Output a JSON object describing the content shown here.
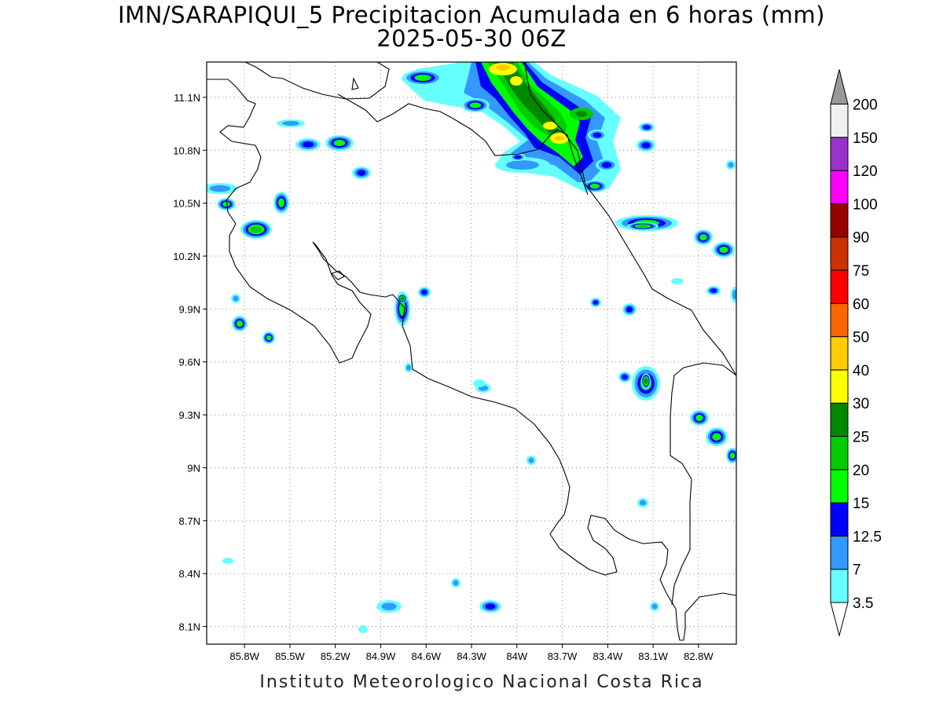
{
  "title": {
    "line1": "IMN/SARAPIQUI_5 Precipitacion Acumulada en 6 horas (mm)",
    "line2": "2025-05-30 06Z"
  },
  "footer": "Instituto Meteorologico Nacional Costa Rica",
  "map": {
    "lon_range": [
      -86.05,
      -82.55
    ],
    "lat_range": [
      8.0,
      11.3
    ],
    "lon_ticks": [
      {
        "value": -85.8,
        "label": "85.8W"
      },
      {
        "value": -85.5,
        "label": "85.5W"
      },
      {
        "value": -85.2,
        "label": "85.2W"
      },
      {
        "value": -84.9,
        "label": "84.9W"
      },
      {
        "value": -84.6,
        "label": "84.6W"
      },
      {
        "value": -84.3,
        "label": "84.3W"
      },
      {
        "value": -84.0,
        "label": "84W"
      },
      {
        "value": -83.7,
        "label": "83.7W"
      },
      {
        "value": -83.4,
        "label": "83.4W"
      },
      {
        "value": -83.1,
        "label": "83.1W"
      },
      {
        "value": -82.8,
        "label": "82.8W"
      }
    ],
    "lat_ticks": [
      {
        "value": 11.1,
        "label": "11.1N"
      },
      {
        "value": 10.8,
        "label": "10.8N"
      },
      {
        "value": 10.5,
        "label": "10.5N"
      },
      {
        "value": 10.2,
        "label": "10.2N"
      },
      {
        "value": 9.9,
        "label": "9.9N"
      },
      {
        "value": 9.6,
        "label": "9.6N"
      },
      {
        "value": 9.3,
        "label": "9.3N"
      },
      {
        "value": 9.0,
        "label": "9N"
      },
      {
        "value": 8.7,
        "label": "8.7N"
      },
      {
        "value": 8.4,
        "label": "8.4N"
      },
      {
        "value": 8.1,
        "label": "8.1N"
      }
    ],
    "grid": "dotted"
  },
  "colorbar": {
    "levels": [
      "3.5",
      "7",
      "12.5",
      "15",
      "20",
      "25",
      "30",
      "40",
      "50",
      "60",
      "75",
      "90",
      "100",
      "120",
      "150",
      "200"
    ],
    "colors": [
      "#66ffff",
      "#3399ff",
      "#0000ff",
      "#00ff00",
      "#00cc00",
      "#008800",
      "#ffff00",
      "#ffcc00",
      "#ff6600",
      "#ff0000",
      "#cc3300",
      "#990000",
      "#ff00ff",
      "#9933cc",
      "#f0f0f0",
      "#999999"
    ]
  }
}
